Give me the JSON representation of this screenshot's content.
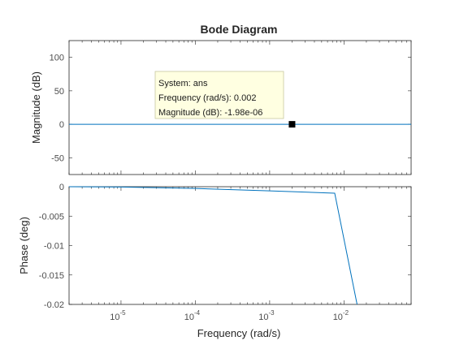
{
  "chart_data": {
    "type": "line",
    "title": "Bode Diagram",
    "xlabel": "Frequency  (rad/s)",
    "xscale": "log",
    "xlim": [
      2e-06,
      0.08
    ],
    "x_ticks": [
      1e-05,
      0.0001,
      0.001,
      0.01
    ],
    "x_tick_labels": [
      {
        "base": "10",
        "exp": "-5"
      },
      {
        "base": "10",
        "exp": "-4"
      },
      {
        "base": "10",
        "exp": "-3"
      },
      {
        "base": "10",
        "exp": "-2"
      }
    ],
    "line_color": "#0072bd",
    "grid": false,
    "panels": [
      {
        "id": "magnitude",
        "ylabel": "Magnitude (dB)",
        "ylim": [
          -75,
          125
        ],
        "y_ticks": [
          100,
          50,
          0,
          -50
        ],
        "y_tick_labels": [
          "100",
          "50",
          "0",
          "-50"
        ],
        "x": [
          2e-06,
          0.08
        ],
        "y": [
          0,
          0
        ]
      },
      {
        "id": "phase",
        "ylabel": "Phase (deg)",
        "ylim": [
          -0.02,
          0
        ],
        "y_ticks": [
          0,
          -0.005,
          -0.01,
          -0.015,
          -0.02
        ],
        "y_tick_labels": [
          "0",
          "-0.005",
          "-0.01",
          "-0.015",
          "-0.02"
        ],
        "x": [
          2e-06,
          1e-05,
          0.0001,
          0.001,
          0.0075,
          0.015
        ],
        "y": [
          0,
          -5e-05,
          -0.0003,
          -0.0007,
          -0.0011,
          -0.02
        ]
      }
    ],
    "datatip": {
      "lines": [
        "System: ans",
        "Frequency (rad/s): 0.002",
        "Magnitude (dB): -1.98e-06"
      ],
      "x": 0.002,
      "y": 0
    }
  }
}
